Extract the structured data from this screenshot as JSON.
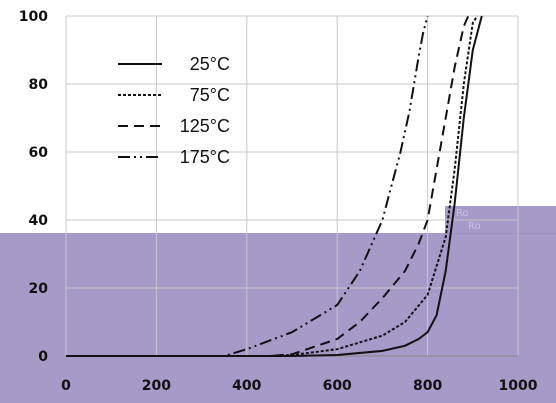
{
  "chart_data": {
    "type": "line",
    "title": "",
    "xlabel": "",
    "ylabel": "",
    "xlim": [
      0,
      1000
    ],
    "ylim": [
      0,
      100
    ],
    "xticks": [
      0,
      200,
      400,
      600,
      800,
      1000
    ],
    "yticks": [
      0,
      20,
      40,
      60,
      80,
      100
    ],
    "grid": "vertical-and-horizontal",
    "legend_position": "top-left",
    "series": [
      {
        "name": "25°C",
        "style": "solid",
        "x": [
          0,
          500,
          600,
          700,
          750,
          780,
          800,
          820,
          840,
          860,
          880,
          900,
          920
        ],
        "y": [
          0,
          0,
          0.3,
          1.5,
          3,
          5,
          7,
          12,
          25,
          45,
          70,
          90,
          100
        ]
      },
      {
        "name": "75°C",
        "style": "dotted",
        "x": [
          0,
          450,
          500,
          600,
          700,
          750,
          800,
          840,
          860,
          880,
          900,
          910
        ],
        "y": [
          0,
          0,
          0.3,
          2,
          6,
          10,
          18,
          35,
          55,
          80,
          98,
          100
        ]
      },
      {
        "name": "125°C",
        "style": "dashed",
        "x": [
          0,
          450,
          500,
          600,
          650,
          700,
          750,
          780,
          800,
          820,
          840,
          860,
          880,
          890
        ],
        "y": [
          0,
          0,
          0.5,
          5,
          10,
          17,
          25,
          33,
          40,
          55,
          70,
          85,
          97,
          100
        ]
      },
      {
        "name": "175°C",
        "style": "dash-dot-dot",
        "x": [
          0,
          350,
          400,
          500,
          600,
          650,
          700,
          720,
          740,
          760,
          780,
          790,
          800
        ],
        "y": [
          0,
          0,
          2,
          7,
          15,
          25,
          40,
          50,
          60,
          72,
          88,
          95,
          100
        ]
      }
    ],
    "x_tick_labels": [
      "0",
      "200",
      "400",
      "600",
      "800",
      "1000"
    ],
    "y_tick_labels": [
      "0",
      "20",
      "40",
      "60",
      "80",
      "100"
    ]
  },
  "overlay": {
    "color": "#9b8fc2",
    "label_line1": "Ro",
    "label_line2": "Ro"
  }
}
